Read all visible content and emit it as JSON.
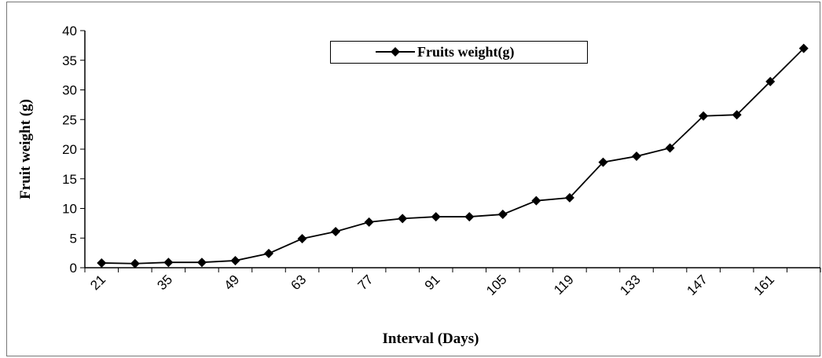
{
  "chart_data": {
    "type": "line",
    "xlabel": "Interval (Days)",
    "ylabel": "Fruit  weight (g)",
    "categories": [
      "21",
      null,
      "35",
      null,
      "49",
      null,
      "63",
      null,
      "77",
      null,
      "91",
      null,
      "105",
      null,
      "119",
      null,
      "133",
      null,
      "147",
      null,
      "161",
      null
    ],
    "series": [
      {
        "name": "Fruits weight(g)",
        "color": "#000000",
        "values": [
          0.8,
          0.7,
          0.9,
          0.9,
          1.2,
          2.4,
          4.9,
          6.1,
          7.7,
          8.3,
          8.6,
          8.6,
          9.0,
          11.3,
          11.8,
          17.8,
          18.8,
          20.2,
          25.6,
          25.8,
          31.4,
          37.0
        ]
      }
    ],
    "ylim": [
      0,
      40
    ],
    "yticks": [
      0,
      5,
      10,
      15,
      20,
      25,
      30,
      35,
      40
    ],
    "legend": "top"
  }
}
